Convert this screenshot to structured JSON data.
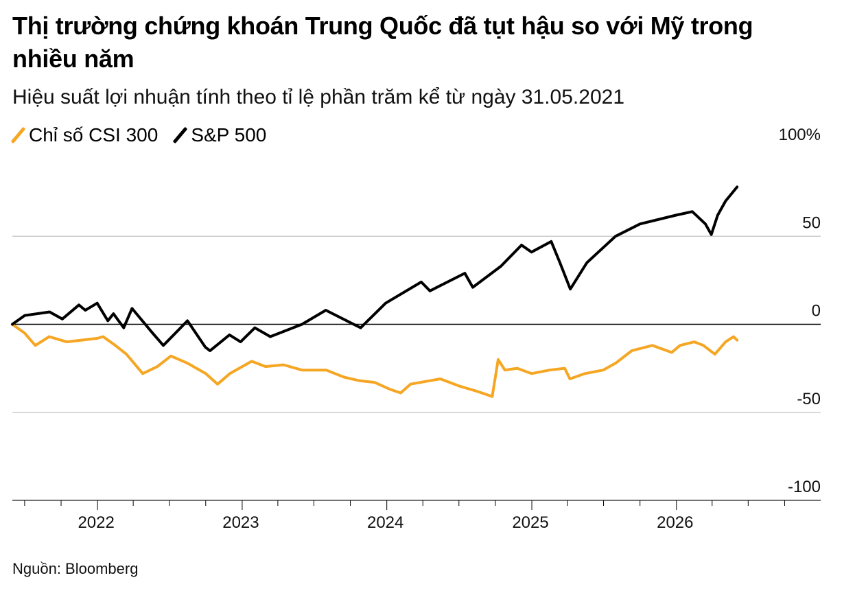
{
  "title": "Thị trường chứng khoán Trung Quốc đã tụt hậu so với Mỹ trong nhiều năm",
  "subtitle": "Hiệu suất lợi nhuận tính theo tỉ lệ phần trăm kể từ ngày 31.05.2021",
  "source": "Nguồn: Bloomberg",
  "chart_data": {
    "type": "line",
    "title": "Thị trường chứng khoán Trung Quốc đã tụt hậu so với Mỹ trong nhiều năm",
    "subtitle": "Hiệu suất lợi nhuận tính theo tỉ lệ phần trăm kể từ ngày 31.05.2021",
    "xlabel": "",
    "ylabel": "",
    "ylim": [
      -100,
      100
    ],
    "xlim": [
      "2021-05-31",
      "2026-12-31"
    ],
    "y_ticks": [
      {
        "value": 100,
        "label": "100%"
      },
      {
        "value": 50,
        "label": "50"
      },
      {
        "value": 0,
        "label": "0"
      },
      {
        "value": -50,
        "label": "-50"
      },
      {
        "value": -100,
        "label": "-100"
      }
    ],
    "x_ticks": [
      {
        "date": "2022-01-01",
        "label": "2022"
      },
      {
        "date": "2023-01-01",
        "label": "2023"
      },
      {
        "date": "2024-01-01",
        "label": "2024"
      },
      {
        "date": "2025-01-01",
        "label": "2025"
      },
      {
        "date": "2026-01-01",
        "label": "2026"
      }
    ],
    "grid": "horizontal",
    "legend_position": "top-left",
    "series": [
      {
        "name": "Chỉ số CSI 300",
        "color": "#f5a623",
        "points": [
          [
            "2021-05-31",
            0
          ],
          [
            "2021-07-01",
            -5
          ],
          [
            "2021-07-28",
            -12
          ],
          [
            "2021-09-01",
            -7
          ],
          [
            "2021-10-15",
            -10
          ],
          [
            "2021-12-31",
            -8
          ],
          [
            "2022-01-15",
            -7
          ],
          [
            "2022-02-15",
            -12
          ],
          [
            "2022-03-15",
            -17
          ],
          [
            "2022-04-25",
            -28
          ],
          [
            "2022-06-01",
            -24
          ],
          [
            "2022-07-05",
            -18
          ],
          [
            "2022-08-15",
            -22
          ],
          [
            "2022-10-01",
            -28
          ],
          [
            "2022-10-31",
            -34
          ],
          [
            "2022-12-01",
            -28
          ],
          [
            "2023-01-25",
            -21
          ],
          [
            "2023-03-01",
            -24
          ],
          [
            "2023-04-15",
            -23
          ],
          [
            "2023-06-01",
            -26
          ],
          [
            "2023-08-01",
            -26
          ],
          [
            "2023-09-15",
            -30
          ],
          [
            "2023-10-23",
            -32
          ],
          [
            "2023-12-01",
            -33
          ],
          [
            "2024-01-10",
            -37
          ],
          [
            "2024-02-05",
            -39
          ],
          [
            "2024-03-01",
            -34
          ],
          [
            "2024-05-15",
            -31
          ],
          [
            "2024-07-01",
            -35
          ],
          [
            "2024-08-15",
            -38
          ],
          [
            "2024-09-23",
            -41
          ],
          [
            "2024-10-08",
            -20
          ],
          [
            "2024-10-25",
            -26
          ],
          [
            "2024-11-25",
            -25
          ],
          [
            "2024-12-31",
            -28
          ],
          [
            "2025-02-15",
            -26
          ],
          [
            "2025-03-25",
            -25
          ],
          [
            "2025-04-07",
            -31
          ],
          [
            "2025-05-15",
            -28
          ],
          [
            "2025-06-30",
            -26
          ],
          [
            "2025-08-01",
            -22
          ],
          [
            "2025-09-10",
            -15
          ],
          [
            "2025-11-01",
            -12
          ],
          [
            "2025-12-20",
            -16
          ],
          [
            "2026-01-10",
            -12
          ],
          [
            "2026-02-15",
            -10
          ],
          [
            "2026-03-10",
            -12
          ],
          [
            "2026-04-08",
            -17
          ],
          [
            "2026-05-05",
            -10
          ],
          [
            "2026-05-25",
            -7
          ],
          [
            "2026-06-03",
            -9
          ]
        ]
      },
      {
        "name": "S&P 500",
        "color": "#000000",
        "points": [
          [
            "2021-05-31",
            0
          ],
          [
            "2021-07-01",
            5
          ],
          [
            "2021-09-02",
            7
          ],
          [
            "2021-10-04",
            3
          ],
          [
            "2021-11-15",
            11
          ],
          [
            "2021-12-01",
            8
          ],
          [
            "2021-12-31",
            12
          ],
          [
            "2022-01-27",
            2
          ],
          [
            "2022-02-10",
            6
          ],
          [
            "2022-03-08",
            -2
          ],
          [
            "2022-03-29",
            9
          ],
          [
            "2022-05-20",
            -5
          ],
          [
            "2022-06-16",
            -12
          ],
          [
            "2022-08-16",
            2
          ],
          [
            "2022-09-30",
            -13
          ],
          [
            "2022-10-12",
            -15
          ],
          [
            "2022-11-30",
            -6
          ],
          [
            "2022-12-28",
            -10
          ],
          [
            "2023-02-02",
            -2
          ],
          [
            "2023-03-13",
            -7
          ],
          [
            "2023-06-01",
            0
          ],
          [
            "2023-07-31",
            8
          ],
          [
            "2023-10-27",
            -2
          ],
          [
            "2023-12-29",
            12
          ],
          [
            "2024-03-28",
            24
          ],
          [
            "2024-04-19",
            19
          ],
          [
            "2024-07-16",
            29
          ],
          [
            "2024-08-05",
            21
          ],
          [
            "2024-10-15",
            33
          ],
          [
            "2024-12-06",
            45
          ],
          [
            "2024-12-31",
            41
          ],
          [
            "2025-02-19",
            47
          ],
          [
            "2025-03-13",
            35
          ],
          [
            "2025-04-08",
            20
          ],
          [
            "2025-05-20",
            35
          ],
          [
            "2025-07-31",
            50
          ],
          [
            "2025-10-01",
            57
          ],
          [
            "2025-12-31",
            62
          ],
          [
            "2026-02-10",
            64
          ],
          [
            "2026-03-15",
            57
          ],
          [
            "2026-03-30",
            51
          ],
          [
            "2026-04-15",
            62
          ],
          [
            "2026-05-05",
            70
          ],
          [
            "2026-06-03",
            78
          ]
        ]
      }
    ]
  }
}
